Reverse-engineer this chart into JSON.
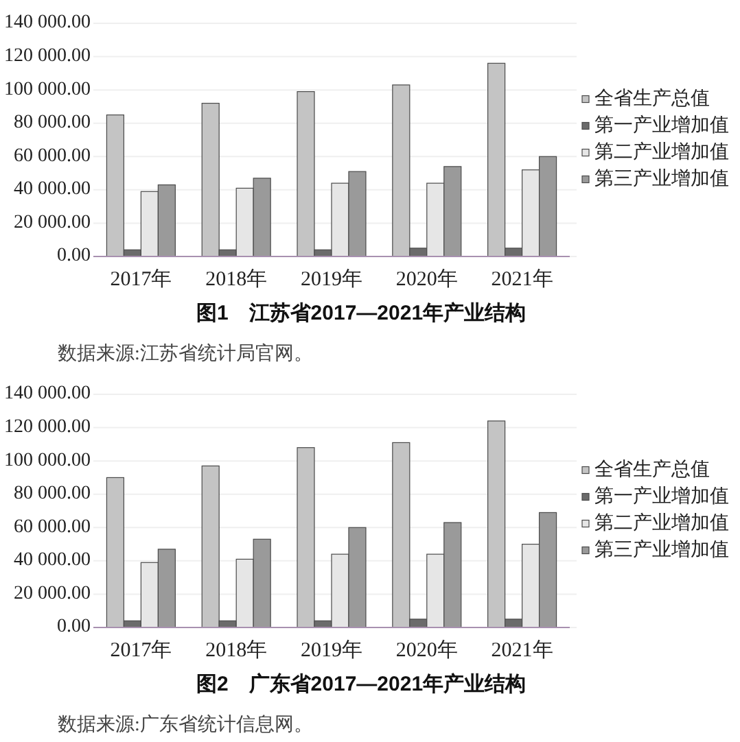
{
  "chart_data": [
    {
      "type": "bar",
      "title": "图1　江苏省2017—2021年产业结构",
      "annotations": [
        "数据来源:江苏省统计局官网。"
      ],
      "categories": [
        "2017年",
        "2018年",
        "2019年",
        "2020年",
        "2021年"
      ],
      "series": [
        {
          "name": "全省生产总值",
          "color": "#c4c4c4",
          "values": [
            85000,
            92000,
            99000,
            103000,
            116000
          ]
        },
        {
          "name": "第一产业增加值",
          "color": "#6b6b6b",
          "values": [
            4000,
            4000,
            4000,
            5000,
            5000
          ]
        },
        {
          "name": "第二产业增加值",
          "color": "#e6e6e6",
          "values": [
            39000,
            41000,
            44000,
            44000,
            52000
          ]
        },
        {
          "name": "第三产业增加值",
          "color": "#9a9a9a",
          "values": [
            43000,
            47000,
            51000,
            54000,
            60000
          ]
        }
      ],
      "ylim": [
        0,
        140000
      ],
      "yticks": [
        {
          "value": 0,
          "label": "0.00"
        },
        {
          "value": 20000,
          "label": "20 000.00"
        },
        {
          "value": 40000,
          "label": "40 000.00"
        },
        {
          "value": 60000,
          "label": "60 000.00"
        },
        {
          "value": 80000,
          "label": "80 000.00"
        },
        {
          "value": 100000,
          "label": "100 000.00"
        },
        {
          "value": 120000,
          "label": "120 000.00"
        },
        {
          "value": 140000,
          "label": "140 000.00"
        }
      ],
      "grid": "y",
      "legend": "right"
    },
    {
      "type": "bar",
      "title": "图2　广东省2017—2021年产业结构",
      "annotations": [
        "数据来源:广东省统计信息网。"
      ],
      "categories": [
        "2017年",
        "2018年",
        "2019年",
        "2020年",
        "2021年"
      ],
      "series": [
        {
          "name": "全省生产总值",
          "color": "#c4c4c4",
          "values": [
            90000,
            97000,
            108000,
            111000,
            124000
          ]
        },
        {
          "name": "第一产业增加值",
          "color": "#6b6b6b",
          "values": [
            4000,
            4000,
            4000,
            5000,
            5000
          ]
        },
        {
          "name": "第二产业增加值",
          "color": "#e6e6e6",
          "values": [
            39000,
            41000,
            44000,
            44000,
            50000
          ]
        },
        {
          "name": "第三产业增加值",
          "color": "#9a9a9a",
          "values": [
            47000,
            53000,
            60000,
            63000,
            69000
          ]
        }
      ],
      "ylim": [
        0,
        140000
      ],
      "yticks": [
        {
          "value": 0,
          "label": "0.00"
        },
        {
          "value": 20000,
          "label": "20 000.00"
        },
        {
          "value": 40000,
          "label": "40 000.00"
        },
        {
          "value": 60000,
          "label": "60 000.00"
        },
        {
          "value": 80000,
          "label": "80 000.00"
        },
        {
          "value": 100000,
          "label": "100 000.00"
        },
        {
          "value": 120000,
          "label": "120 000.00"
        },
        {
          "value": 140000,
          "label": "140 000.00"
        }
      ],
      "grid": "y",
      "legend": "right"
    }
  ]
}
